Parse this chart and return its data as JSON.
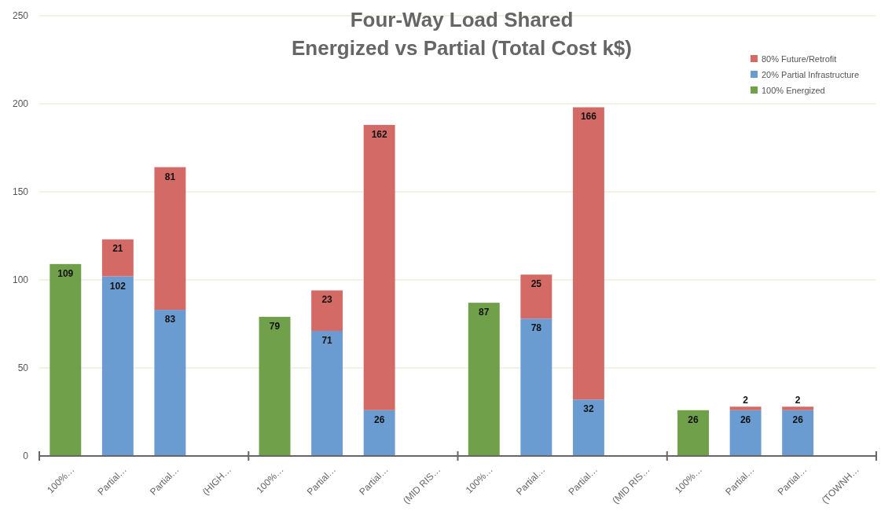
{
  "chart_data": {
    "type": "bar",
    "stacked": true,
    "title": "Four-Way Load Shared\nEnergized vs Partial (Total Cost k$)",
    "categories": [
      "100%…",
      "Partial…",
      "Partial…",
      "(HIGH…",
      "100%…",
      "Partial…",
      "Partial…",
      "(MID RIS…",
      "100%…",
      "Partial…",
      "Partial…",
      "(MID RIS…",
      "100%…",
      "Partial…",
      "Partial…",
      "(TOWNH…"
    ],
    "series": [
      {
        "name": "100% Energized",
        "color": "#70a04a",
        "values": [
          109,
          null,
          null,
          null,
          79,
          null,
          null,
          null,
          87,
          null,
          null,
          null,
          26,
          null,
          null,
          null
        ]
      },
      {
        "name": "20% Partial Infrastructure",
        "color": "#6a9bd1",
        "values": [
          null,
          102,
          83,
          null,
          null,
          71,
          26,
          null,
          null,
          78,
          32,
          null,
          null,
          26,
          26,
          null
        ]
      },
      {
        "name": "80% Future/Retrofit",
        "color": "#d46a66",
        "values": [
          null,
          21,
          81,
          null,
          null,
          23,
          162,
          null,
          null,
          25,
          166,
          null,
          null,
          2,
          2,
          null
        ]
      }
    ],
    "ylim": [
      0,
      250
    ],
    "yticks": [
      0,
      50,
      100,
      150,
      200,
      250
    ],
    "grid": "y",
    "legend": "top right",
    "data_labels": true
  }
}
